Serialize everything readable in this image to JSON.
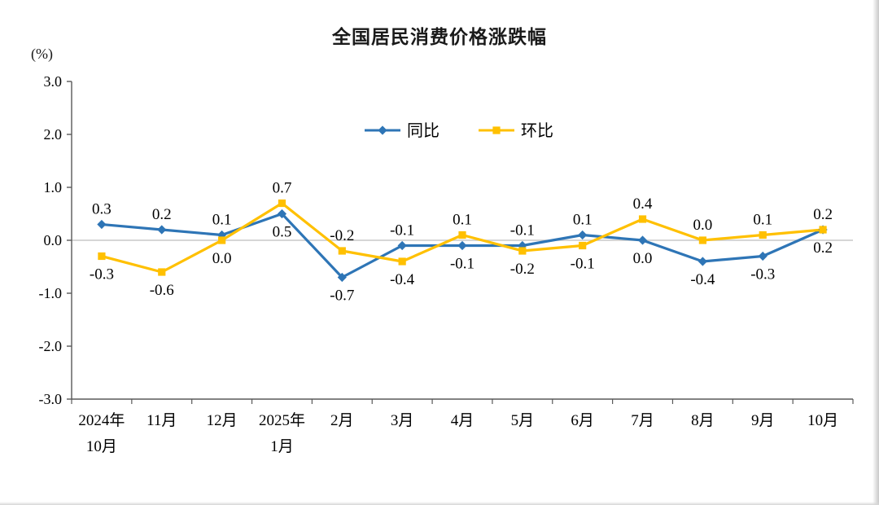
{
  "page": {
    "background": "#ffffff"
  },
  "chart_data": {
    "type": "line",
    "title": "全国居民消费价格涨跌幅",
    "unit_label": "(%)",
    "categories": [
      "2024年\n10月",
      "11月",
      "12月",
      "2025年\n1月",
      "2月",
      "3月",
      "4月",
      "5月",
      "6月",
      "7月",
      "8月",
      "9月",
      "10月"
    ],
    "series": [
      {
        "name": "同比",
        "color": "#2E75B6",
        "marker": "diamond",
        "values": [
          0.3,
          0.2,
          0.1,
          0.5,
          -0.7,
          -0.1,
          -0.1,
          -0.1,
          0.1,
          0.0,
          -0.4,
          -0.3,
          0.2
        ],
        "labels": [
          "0.3",
          "0.2",
          "0.1",
          "0.5",
          "-0.7",
          "-0.1",
          "-0.1",
          "-0.1",
          "0.1",
          "0.0",
          "-0.4",
          "-0.3",
          "0.2"
        ]
      },
      {
        "name": "环比",
        "color": "#FFC000",
        "marker": "square",
        "values": [
          -0.3,
          -0.6,
          0.0,
          0.7,
          -0.2,
          -0.4,
          0.1,
          -0.2,
          -0.1,
          0.4,
          0.0,
          0.1,
          0.2
        ],
        "labels": [
          "-0.3",
          "-0.6",
          "0.0",
          "0.7",
          "-0.2",
          "-0.4",
          "0.1",
          "-0.2",
          "-0.1",
          "0.4",
          "0.0",
          "0.1",
          "0.2"
        ]
      }
    ],
    "ylim": [
      -3.0,
      3.0
    ],
    "ytick_step": 1.0,
    "yticks": [
      "3.0",
      "2.0",
      "1.0",
      "0.0",
      "-1.0",
      "-2.0",
      "-3.0"
    ],
    "grid": "zero-line-only",
    "legend_position": "top-center-inside",
    "colors": {
      "axis": "#595959",
      "zero_line": "#c8c8c8",
      "text": "#000000"
    }
  }
}
